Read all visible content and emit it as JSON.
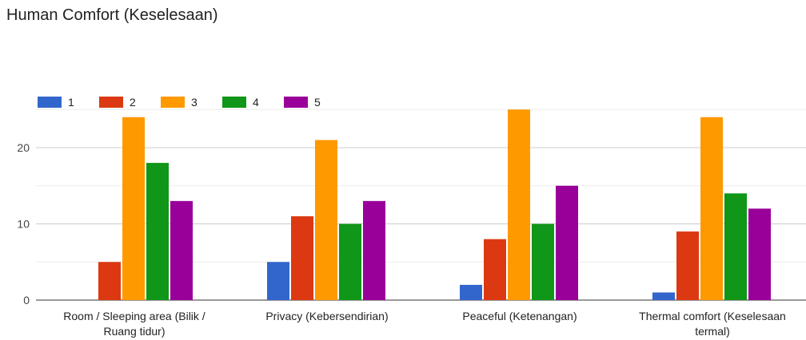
{
  "chart_data": {
    "type": "bar",
    "title": "Human Comfort (Keselesaan)",
    "categories": [
      [
        "Room / Sleeping area (Bilik /",
        "Ruang tidur)"
      ],
      [
        "Privacy (Kebersendirian)"
      ],
      [
        "Peaceful (Ketenangan)"
      ],
      [
        "Thermal comfort (Keselesaan",
        "termal)"
      ]
    ],
    "series": [
      {
        "name": "1",
        "color": "#3366cc",
        "values": [
          0,
          5,
          2,
          1
        ]
      },
      {
        "name": "2",
        "color": "#dc3912",
        "values": [
          5,
          11,
          8,
          9
        ]
      },
      {
        "name": "3",
        "color": "#ff9900",
        "values": [
          24,
          21,
          25,
          24
        ]
      },
      {
        "name": "4",
        "color": "#109618",
        "values": [
          18,
          10,
          10,
          14
        ]
      },
      {
        "name": "5",
        "color": "#990099",
        "values": [
          13,
          13,
          15,
          12
        ]
      }
    ],
    "ylim": [
      0,
      25
    ],
    "yticks": [
      0,
      10,
      20
    ],
    "grid": true,
    "legend": "top-left"
  }
}
